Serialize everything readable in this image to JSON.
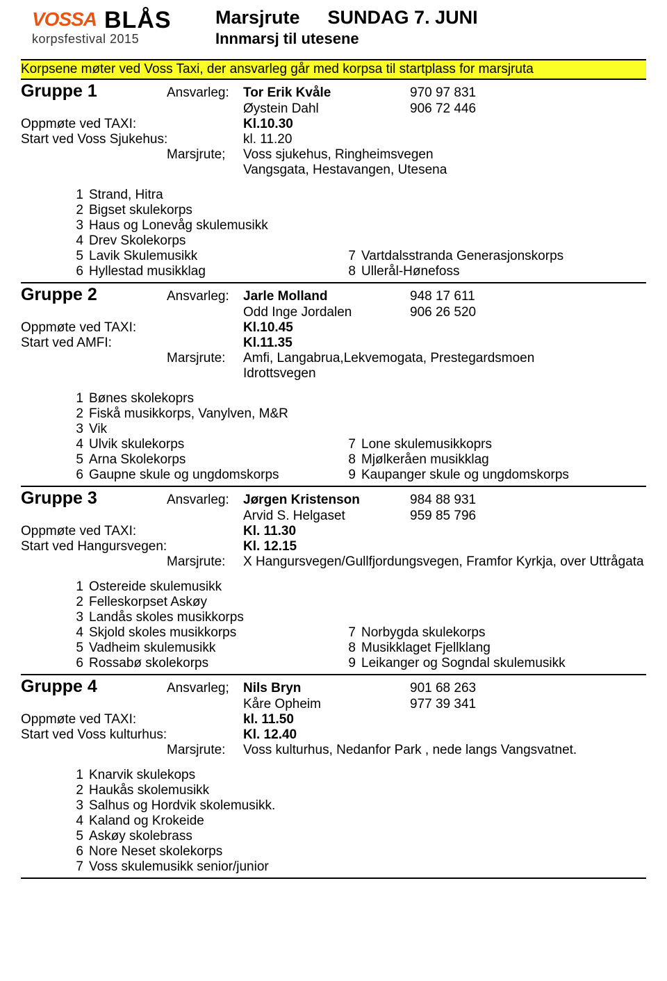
{
  "logo": {
    "word1": "VOSSA",
    "word2": "BLÅS",
    "sub": "korpsfestival 2015"
  },
  "header": {
    "title1a": "Marsjrute",
    "title1b": "SUNDAG 7. JUNI",
    "title2": "Innmarsj til utesene"
  },
  "notice": "Korpsene møter ved Voss Taxi, der ansvarleg går med korpsa til startplass for marsjruta",
  "g1": {
    "name": "Gruppe 1",
    "ansvLbl": "Ansvarleg:",
    "p1": "Tor Erik Kvåle",
    "p1tel": "970 97 831",
    "p2": "Øystein Dahl",
    "p2tel": "906 72 446",
    "meetLbl": "Oppmøte ved TAXI:",
    "meet": "Kl.10.30",
    "startLbl": "Start ved Voss Sjukehus:",
    "start": "kl. 11.20",
    "routeLbl": "Marsjrute;",
    "route1": "Voss sjukehus, Ringheimsvegen",
    "route2": "Vangsgata, Hestavangen, Utesena",
    "l": [
      {
        "n": "1",
        "t": "Strand, Hitra"
      },
      {
        "n": "2",
        "t": "Bigset skulekorps"
      },
      {
        "n": "3",
        "t": "Haus og Lonevåg skulemusikk"
      },
      {
        "n": "4",
        "t": "Drev Skolekorps"
      },
      {
        "n": "5",
        "t": "Lavik Skulemusikk"
      },
      {
        "n": "6",
        "t": "Hyllestad musikklag"
      }
    ],
    "r": [
      {
        "n": "7",
        "t": "Vartdalsstranda Generasjonskorps"
      },
      {
        "n": "8",
        "t": "Ullerål-Hønefoss"
      }
    ]
  },
  "g2": {
    "name": "Gruppe 2",
    "ansvLbl": "Ansvarleg:",
    "p1": "Jarle Molland",
    "p1tel": "948 17 611",
    "p2": "Odd Inge Jordalen",
    "p2tel": "906 26 520",
    "meetLbl": "Oppmøte ved TAXI:",
    "meet": "Kl.10.45",
    "startLbl": "Start ved AMFI:",
    "start": "Kl.11.35",
    "routeLbl": "Marsjrute:",
    "route1": "Amfi, Langabrua,Lekvemogata, Prestegardsmoen",
    "route2": "Idrottsvegen",
    "l": [
      {
        "n": "1",
        "t": "Bønes skolekoprs"
      },
      {
        "n": "2",
        "t": "Fiskå musikkorps, Vanylven, M&R"
      },
      {
        "n": "3",
        "t": "Vik"
      },
      {
        "n": "4",
        "t": "Ulvik skulekorps"
      },
      {
        "n": "5",
        "t": "Arna Skolekorps"
      },
      {
        "n": "6",
        "t": "Gaupne skule og ungdomskorps"
      }
    ],
    "r": [
      {
        "n": "7",
        "t": "Lone skulemusikkoprs"
      },
      {
        "n": "8",
        "t": "Mjølkeråen musikklag"
      },
      {
        "n": "9",
        "t": "Kaupanger skule og ungdomskorps"
      }
    ]
  },
  "g3": {
    "name": "Gruppe 3",
    "ansvLbl": "Ansvarleg:",
    "p1": "Jørgen Kristenson",
    "p1tel": "984 88 931",
    "p2": "Arvid S. Helgaset",
    "p2tel": "959 85 796",
    "meetLbl": "Oppmøte ved TAXI:",
    "meet": "Kl. 11.30",
    "startLbl": "Start ved Hangursvegen:",
    "start": "Kl. 12.15",
    "routeLbl": "Marsjrute:",
    "route1": "X Hangursvegen/Gullfjordungsvegen, Framfor Kyrkja, over Uttrågata",
    "l": [
      {
        "n": "1",
        "t": "Ostereide skulemusikk"
      },
      {
        "n": "2",
        "t": "Felleskorpset Askøy"
      },
      {
        "n": "3",
        "t": "Landås skoles musikkorps"
      },
      {
        "n": "4",
        "t": "Skjold skoles musikkorps"
      },
      {
        "n": "5",
        "t": "Vadheim skulemusikk"
      },
      {
        "n": "6",
        "t": "Rossabø skolekorps"
      }
    ],
    "r": [
      {
        "n": "7",
        "t": "Norbygda skulekorps"
      },
      {
        "n": "8",
        "t": "Musikklaget Fjellklang"
      },
      {
        "n": "9",
        "t": "Leikanger og Sogndal skulemusikk"
      }
    ]
  },
  "g4": {
    "name": "Gruppe 4",
    "ansvLbl": "Ansvarleg;",
    "p1": "Nils Bryn",
    "p1tel": "901 68 263",
    "p2": "Kåre Opheim",
    "p2tel": "977 39 341",
    "meetLbl": "Oppmøte ved TAXI:",
    "meet": "kl. 11.50",
    "startLbl": "Start ved Voss kulturhus:",
    "start": "Kl. 12.40",
    "routeLbl": "Marsjrute:",
    "route1": "Voss kulturhus, Nedanfor Park , nede langs Vangsvatnet.",
    "l": [
      {
        "n": "1",
        "t": "Knarvik skulekops"
      },
      {
        "n": "2",
        "t": "Haukås skolemusikk"
      },
      {
        "n": "3",
        "t": "Salhus og Hordvik skolemusikk."
      },
      {
        "n": "4",
        "t": "Kaland og Krokeide"
      },
      {
        "n": "5",
        "t": "Askøy skolebrass"
      },
      {
        "n": "6",
        "t": "Nore Neset skolekorps"
      },
      {
        "n": "7",
        "t": "Voss skulemusikk senior/junior"
      }
    ]
  }
}
